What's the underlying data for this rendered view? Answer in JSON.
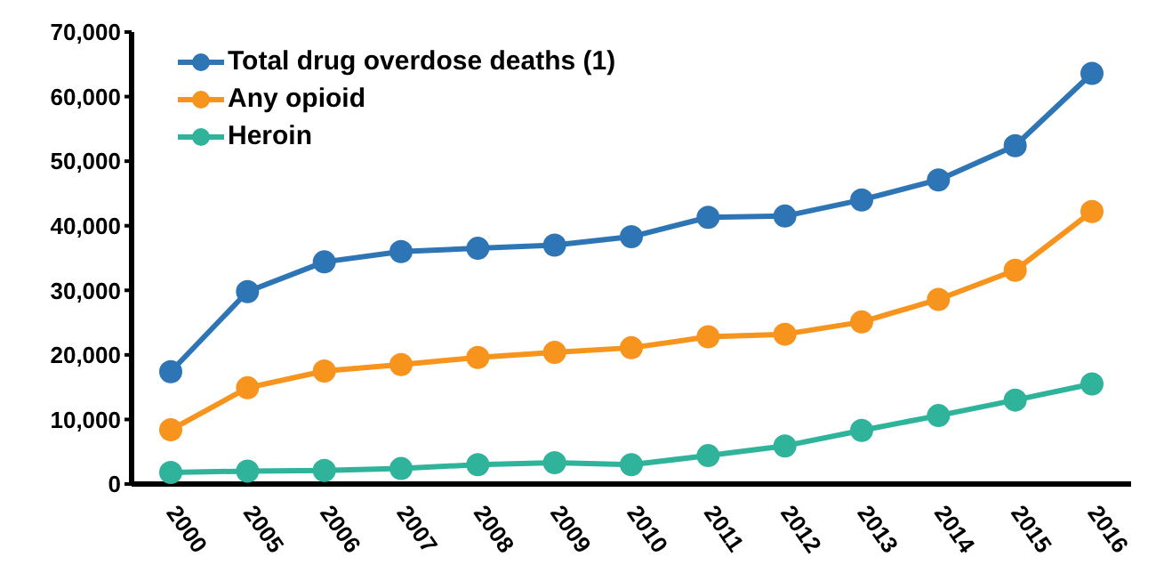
{
  "chart_data": {
    "type": "line",
    "categories": [
      "2000",
      "2005",
      "2006",
      "2007",
      "2008",
      "2009",
      "2010",
      "2011",
      "2012",
      "2013",
      "2014",
      "2015",
      "2016"
    ],
    "series": [
      {
        "name": "Total drug overdose deaths (1)",
        "color": "#2e75b6",
        "values": [
          17400,
          29800,
          34400,
          36000,
          36500,
          37000,
          38300,
          41300,
          41500,
          44000,
          47100,
          52400,
          63600
        ]
      },
      {
        "name": "Any opioid",
        "color": "#f7941d",
        "values": [
          8400,
          14900,
          17500,
          18500,
          19600,
          20400,
          21100,
          22800,
          23200,
          25100,
          28600,
          33100,
          42200
        ]
      },
      {
        "name": "Heroin",
        "color": "#2fb39a",
        "values": [
          1800,
          2000,
          2100,
          2400,
          3000,
          3300,
          3000,
          4400,
          5900,
          8300,
          10600,
          13000,
          15500
        ]
      }
    ],
    "ylim": [
      0,
      70000
    ],
    "yticks": [
      0,
      {
        "value": 10000,
        "label": "10,000"
      },
      {
        "value": 20000,
        "label": "20,000"
      },
      {
        "value": 30000,
        "label": "30,000"
      },
      {
        "value": 40000,
        "label": "40,000"
      },
      {
        "value": 50000,
        "label": "50,000"
      },
      {
        "value": 60000,
        "label": "60,000"
      },
      {
        "value": 70000,
        "label": "70,000"
      }
    ],
    "grid": false,
    "legend": "top left",
    "marker": "circle",
    "line_style": "solid"
  }
}
